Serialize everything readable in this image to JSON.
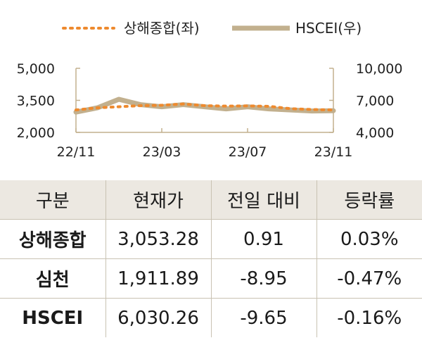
{
  "chart_data": {
    "type": "line",
    "x_ticks": [
      "22/11",
      "23/03",
      "23/07",
      "23/11"
    ],
    "y_left": {
      "ticks": [
        "5,000",
        "3,500",
        "2,000"
      ],
      "tick_values": [
        5000,
        3500,
        2000
      ],
      "range": [
        2000,
        5000
      ]
    },
    "y_right": {
      "ticks": [
        "10,000",
        "7,000",
        "4,000"
      ],
      "tick_values": [
        10000,
        7000,
        4000
      ],
      "range": [
        4000,
        10000
      ]
    },
    "series": [
      {
        "name": "상해종합(좌)",
        "axis": "left",
        "color": "#ee8a2e",
        "style": "dotted",
        "x": [
          "22/11",
          "22/12",
          "23/01",
          "23/02",
          "23/03",
          "23/04",
          "23/05",
          "23/06",
          "23/07",
          "23/08",
          "23/09",
          "23/10",
          "23/11"
        ],
        "values": [
          3050,
          3150,
          3200,
          3250,
          3270,
          3330,
          3250,
          3230,
          3240,
          3220,
          3110,
          3070,
          3050
        ]
      },
      {
        "name": "HSCEI(우)",
        "axis": "right",
        "color": "#c2b08e",
        "style": "solid",
        "x": [
          "22/11",
          "22/12",
          "23/01",
          "23/02",
          "23/03",
          "23/04",
          "23/05",
          "23/06",
          "23/07",
          "23/08",
          "23/09",
          "23/10",
          "23/11"
        ],
        "values": [
          5900,
          6300,
          7100,
          6600,
          6400,
          6600,
          6400,
          6200,
          6400,
          6200,
          6100,
          6000,
          6030
        ]
      }
    ]
  },
  "table": {
    "headers": [
      "구분",
      "현재가",
      "전일 대비",
      "등락률"
    ],
    "rows": [
      [
        "상해종합",
        "3,053.28",
        "0.91",
        "0.03%"
      ],
      [
        "심천",
        "1,911.89",
        "-8.95",
        "-0.47%"
      ],
      [
        "HSCEI",
        "6,030.26",
        "-9.65",
        "-0.16%"
      ]
    ]
  },
  "colors": {
    "header_bg": "#ece8e1",
    "grid_border": "#c9c2b2",
    "axis": "#c2b08e"
  }
}
